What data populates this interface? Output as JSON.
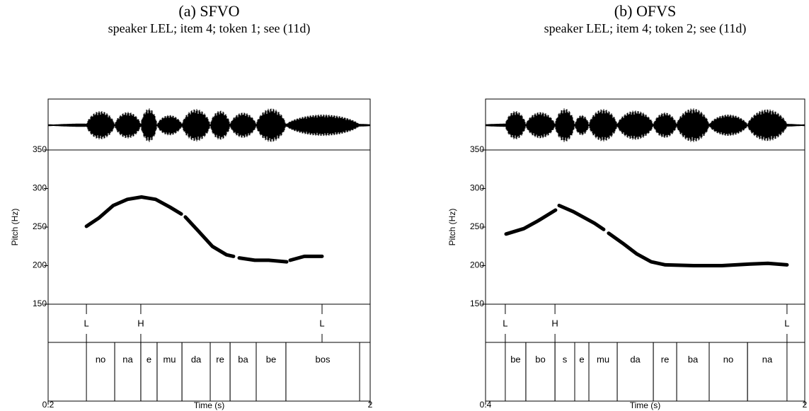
{
  "chart_data": [
    {
      "type": "line",
      "title": "(a) SFVO",
      "subtitle": "speaker LEL; item 4; token 1; see (11d)",
      "y_label": "Pitch (Hz)",
      "x_label": "Time (s)",
      "color": "#000000",
      "xlim": [
        0.2,
        2
      ],
      "xticks": [
        0.2,
        2
      ],
      "ylim": [
        150,
        350
      ],
      "yticks": [
        150,
        200,
        250,
        300,
        350
      ],
      "x": [
        0.414,
        0.485,
        0.564,
        0.643,
        0.722,
        0.801,
        0.88,
        0.944,
        null,
        0.967,
        1.039,
        1.118,
        1.197,
        1.236,
        null,
        1.268,
        1.355,
        1.434,
        1.533,
        null,
        1.553,
        1.632,
        1.731
      ],
      "values": [
        251,
        262,
        278,
        286,
        289,
        286,
        276,
        267,
        null,
        263,
        245,
        225,
        214,
        212,
        null,
        210,
        207,
        207,
        205,
        null,
        207,
        212,
        212
      ],
      "tones": {
        "labels": [
          "L",
          "H",
          "L"
        ],
        "x": [
          0.414,
          0.718,
          1.731
        ]
      },
      "syllables": {
        "labels": [
          "no",
          "na",
          "e",
          "mu",
          "da",
          "re",
          "ba",
          "be",
          "bos"
        ],
        "starts": [
          0.414,
          0.572,
          0.718,
          0.809,
          0.948,
          1.106,
          1.217,
          1.363,
          1.529
        ],
        "ends": [
          0.572,
          0.718,
          0.809,
          0.948,
          1.106,
          1.217,
          1.363,
          1.529,
          1.941
        ]
      }
    },
    {
      "type": "line",
      "title": "(b) OFVS",
      "subtitle": "speaker LEL; item 4; token 2; see (11d)",
      "y_label": "Pitch (Hz)",
      "x_label": "Time (s)",
      "color": "#000000",
      "xlim": [
        0.4,
        2
      ],
      "xticks": [
        0.4,
        2
      ],
      "ylim": [
        150,
        350
      ],
      "yticks": [
        150,
        200,
        250,
        300,
        350
      ],
      "x": [
        0.503,
        0.592,
        0.662,
        0.751,
        null,
        0.769,
        0.84,
        0.946,
        0.992,
        null,
        1.017,
        1.088,
        1.159,
        1.23,
        1.301,
        1.443,
        1.585,
        1.727,
        1.815,
        1.911
      ],
      "values": [
        241,
        248,
        258,
        272,
        null,
        278,
        270,
        255,
        247,
        null,
        242,
        229,
        215,
        205,
        201,
        200,
        200,
        202,
        203,
        201
      ],
      "tones": {
        "labels": [
          "L",
          "H",
          "L"
        ],
        "x": [
          0.499,
          0.748,
          1.911
        ]
      },
      "syllables": {
        "labels": [
          "be",
          "bo",
          "s",
          "e",
          "mu",
          "da",
          "re",
          "ba",
          "no",
          "na"
        ],
        "starts": [
          0.499,
          0.602,
          0.748,
          0.847,
          0.918,
          1.06,
          1.241,
          1.358,
          1.521,
          1.713
        ],
        "ends": [
          0.602,
          0.748,
          0.847,
          0.918,
          1.06,
          1.241,
          1.358,
          1.521,
          1.713,
          1.911
        ]
      }
    }
  ]
}
